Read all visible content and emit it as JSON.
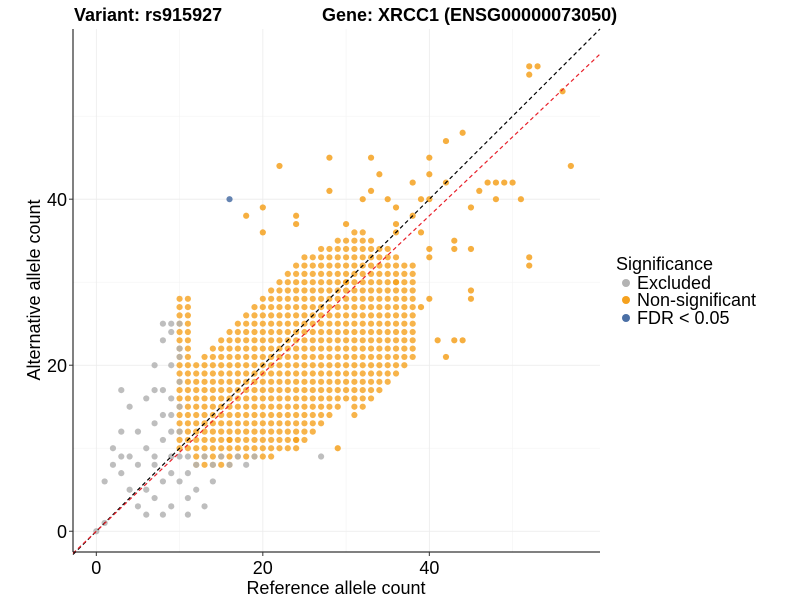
{
  "chart_data": {
    "type": "scatter",
    "title_left": "Variant: rs915927",
    "title_right": "Gene: XRCC1 (ENSG00000073050)",
    "xlabel": "Reference allele count",
    "ylabel": "Alternative allele count",
    "xlim": [
      -2.8,
      60.5
    ],
    "ylim": [
      -2.5,
      60.5
    ],
    "xticks": [
      0,
      20,
      40
    ],
    "yticks": [
      0,
      20,
      40
    ],
    "legend": {
      "title": "Significance",
      "position": "right",
      "entries": [
        {
          "label": "Excluded",
          "color": "#b3b3b3"
        },
        {
          "label": "Non-significant",
          "color": "#f5a11e"
        },
        {
          "label": "FDR < 0.05",
          "color": "#4a6fa5"
        }
      ]
    },
    "reference_lines": [
      {
        "name": "identity",
        "slope": 1.0,
        "intercept": 0,
        "color": "#000000",
        "style": "dashed"
      },
      {
        "name": "fit",
        "slope": 0.95,
        "intercept": 0,
        "color": "#e8202a",
        "style": "dashed"
      }
    ],
    "series": [
      {
        "name": "Excluded",
        "color": "#b3b3b3",
        "points": [
          [
            0,
            0
          ],
          [
            1,
            1
          ],
          [
            1,
            6
          ],
          [
            2,
            8
          ],
          [
            3,
            9
          ],
          [
            3,
            12
          ],
          [
            3,
            17
          ],
          [
            4,
            5
          ],
          [
            4,
            9
          ],
          [
            5,
            8
          ],
          [
            5,
            12
          ],
          [
            6,
            10
          ],
          [
            6,
            5
          ],
          [
            6,
            16
          ],
          [
            6,
            2
          ],
          [
            7,
            8
          ],
          [
            7,
            13
          ],
          [
            7,
            4
          ],
          [
            7,
            17
          ],
          [
            7,
            9
          ],
          [
            8,
            11
          ],
          [
            8,
            2
          ],
          [
            8,
            14
          ],
          [
            8,
            17
          ],
          [
            8,
            25
          ],
          [
            9,
            7
          ],
          [
            9,
            12
          ],
          [
            9,
            20
          ],
          [
            9,
            3
          ],
          [
            9,
            14
          ],
          [
            9,
            16
          ],
          [
            9,
            24
          ],
          [
            10,
            6
          ],
          [
            10,
            9
          ],
          [
            10,
            12
          ],
          [
            10,
            15
          ],
          [
            10,
            18
          ],
          [
            10,
            21
          ],
          [
            10,
            22
          ],
          [
            11,
            9
          ],
          [
            11,
            7
          ],
          [
            11,
            4
          ],
          [
            12,
            8
          ],
          [
            12,
            5
          ],
          [
            13,
            9
          ],
          [
            13,
            3
          ],
          [
            14,
            8
          ],
          [
            14,
            6
          ],
          [
            15,
            9
          ],
          [
            16,
            8
          ],
          [
            17,
            9
          ],
          [
            18,
            8
          ],
          [
            19,
            9
          ],
          [
            27,
            9
          ],
          [
            3,
            7
          ],
          [
            2,
            10
          ],
          [
            4,
            15
          ],
          [
            5,
            3
          ],
          [
            7,
            20
          ],
          [
            8,
            23
          ],
          [
            9,
            25
          ],
          [
            10,
            25
          ],
          [
            11,
            2
          ],
          [
            9,
            9
          ],
          [
            8,
            6
          ]
        ]
      },
      {
        "name": "Non-significant",
        "color": "#f5a11e",
        "points": [
          [
            22,
            44
          ],
          [
            28,
            45
          ],
          [
            33,
            45
          ],
          [
            40,
            45
          ],
          [
            42,
            47
          ],
          [
            44,
            48
          ],
          [
            50,
            42
          ],
          [
            52,
            55
          ],
          [
            52,
            56
          ],
          [
            53,
            56
          ],
          [
            56,
            53
          ],
          [
            57,
            44
          ],
          [
            51,
            40
          ],
          [
            52,
            33
          ],
          [
            52,
            32
          ],
          [
            45,
            29
          ],
          [
            45,
            28
          ],
          [
            42,
            21
          ],
          [
            41,
            23
          ],
          [
            43,
            23
          ],
          [
            44,
            23
          ],
          [
            43,
            34
          ],
          [
            43,
            35
          ],
          [
            45,
            34
          ],
          [
            46,
            41
          ],
          [
            47,
            42
          ],
          [
            48,
            40
          ],
          [
            48,
            42
          ],
          [
            49,
            42
          ],
          [
            45,
            39
          ],
          [
            40,
            40
          ],
          [
            42,
            42
          ],
          [
            38,
            42
          ],
          [
            39,
            40
          ],
          [
            35,
            40
          ],
          [
            36,
            39
          ],
          [
            38,
            38
          ],
          [
            36,
            36
          ],
          [
            36,
            37
          ],
          [
            33,
            41
          ],
          [
            32,
            40
          ],
          [
            40,
            43
          ],
          [
            34,
            43
          ],
          [
            28,
            41
          ],
          [
            24,
            38
          ],
          [
            18,
            38
          ],
          [
            20,
            39
          ],
          [
            20,
            36
          ],
          [
            24,
            37
          ],
          [
            40,
            34
          ],
          [
            40,
            33
          ],
          [
            39,
            36
          ],
          [
            36,
            30
          ],
          [
            29,
            10
          ],
          [
            24,
            11
          ],
          [
            16,
            11
          ],
          [
            39,
            27
          ],
          [
            40,
            28
          ],
          [
            30,
            30
          ],
          [
            30,
            37
          ]
        ]
      },
      {
        "name": "FDR < 0.05",
        "color": "#4a6fa5",
        "points": [
          [
            16,
            40
          ]
        ]
      }
    ]
  }
}
